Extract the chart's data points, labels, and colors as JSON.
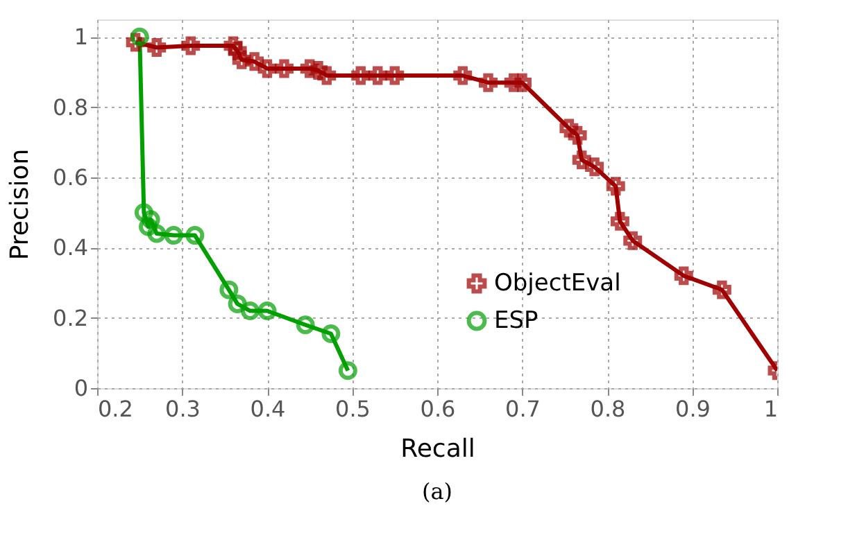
{
  "chart_data": {
    "type": "line",
    "xlabel": "Recall",
    "ylabel": "Precision",
    "xlim": [
      0.2,
      1
    ],
    "ylim": [
      0,
      1.05
    ],
    "xticks": [
      0.2,
      0.3,
      0.4,
      0.5,
      0.6,
      0.7,
      0.8,
      0.9,
      1
    ],
    "yticks": [
      0,
      0.2,
      0.4,
      0.6,
      0.8,
      1
    ],
    "grid": true,
    "legend": "bottom right",
    "annotations": [
      "(a)"
    ],
    "series": [
      {
        "name": "ObjectEval",
        "color": "#a00000",
        "marker": "cross",
        "x": [
          0.245,
          0.27,
          0.31,
          0.36,
          0.365,
          0.37,
          0.385,
          0.4,
          0.42,
          0.45,
          0.46,
          0.47,
          0.51,
          0.53,
          0.55,
          0.63,
          0.66,
          0.69,
          0.7,
          0.755,
          0.765,
          0.77,
          0.785,
          0.81,
          0.815,
          0.83,
          0.89,
          0.935,
          1.0
        ],
        "values": [
          0.985,
          0.97,
          0.975,
          0.975,
          0.96,
          0.935,
          0.93,
          0.91,
          0.91,
          0.91,
          0.905,
          0.89,
          0.89,
          0.89,
          0.89,
          0.89,
          0.87,
          0.87,
          0.87,
          0.74,
          0.72,
          0.65,
          0.63,
          0.575,
          0.475,
          0.42,
          0.32,
          0.28,
          0.05
        ]
      },
      {
        "name": "ESP",
        "color": "#00a000",
        "marker": "circle",
        "x": [
          0.25,
          0.255,
          0.26,
          0.263,
          0.27,
          0.29,
          0.315,
          0.355,
          0.365,
          0.38,
          0.4,
          0.445,
          0.475,
          0.495
        ],
        "values": [
          1.0,
          0.5,
          0.46,
          0.48,
          0.44,
          0.435,
          0.435,
          0.28,
          0.24,
          0.22,
          0.22,
          0.18,
          0.155,
          0.05
        ]
      }
    ]
  }
}
